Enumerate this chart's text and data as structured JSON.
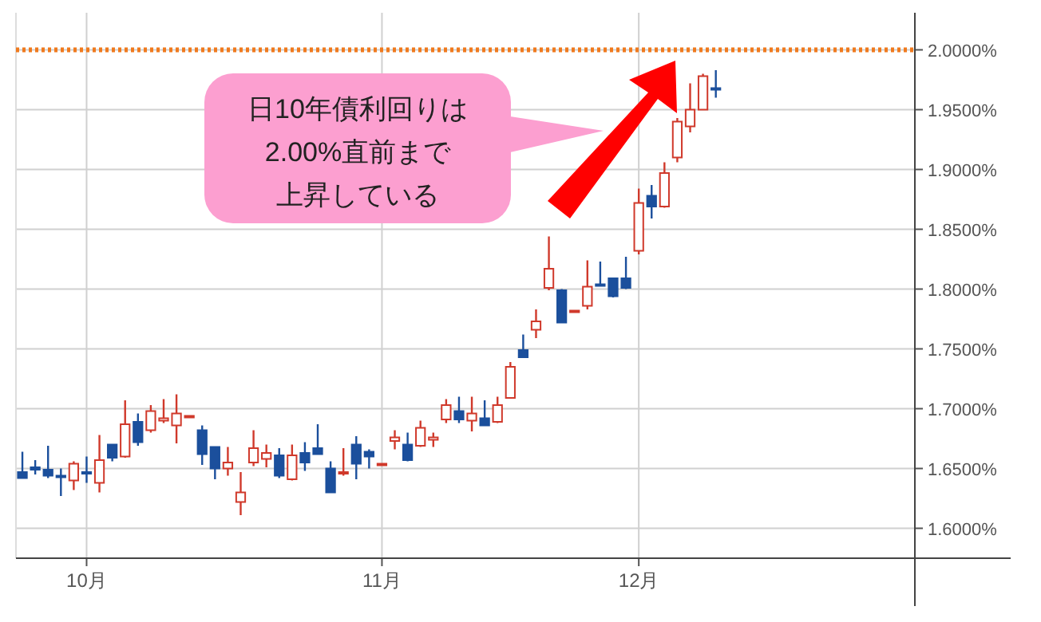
{
  "chart_data": {
    "type": "candlestick",
    "categories": [
      null,
      null,
      null,
      null,
      null,
      "10月",
      null,
      null,
      null,
      null,
      null,
      null,
      null,
      null,
      null,
      null,
      null,
      null,
      null,
      null,
      null,
      null,
      null,
      null,
      null,
      null,
      null,
      null,
      "11月",
      null,
      null,
      null,
      null,
      null,
      null,
      null,
      null,
      null,
      null,
      null,
      null,
      null,
      null,
      null,
      null,
      null,
      null,
      null,
      "12月",
      null,
      null,
      null,
      null,
      null,
      null,
      null,
      null,
      null,
      null,
      null,
      null,
      null,
      null,
      null,
      null,
      null,
      null,
      null,
      null,
      null
    ],
    "ohlc": [
      [
        1.647,
        1.664,
        1.642,
        1.642
      ],
      [
        1.651,
        1.657,
        1.645,
        1.649
      ],
      [
        1.649,
        1.669,
        1.642,
        1.644
      ],
      [
        1.644,
        1.65,
        1.627,
        1.643
      ],
      [
        1.64,
        1.656,
        1.632,
        1.654
      ],
      [
        1.647,
        1.66,
        1.638,
        1.646
      ],
      [
        1.638,
        1.678,
        1.63,
        1.657
      ],
      [
        1.67,
        1.67,
        1.656,
        1.659
      ],
      [
        1.66,
        1.707,
        1.659,
        1.687
      ],
      [
        1.689,
        1.696,
        1.669,
        1.672
      ],
      [
        1.682,
        1.703,
        1.68,
        1.698
      ],
      [
        1.69,
        1.708,
        1.688,
        1.692
      ],
      [
        1.686,
        1.712,
        1.671,
        1.696
      ],
      [
        1.694,
        1.694,
        1.694,
        1.694
      ],
      [
        1.682,
        1.686,
        1.653,
        1.662
      ],
      [
        1.668,
        1.668,
        1.641,
        1.65
      ],
      [
        1.65,
        1.668,
        1.644,
        1.655
      ],
      [
        1.622,
        1.647,
        1.611,
        1.63
      ],
      [
        1.655,
        1.682,
        1.652,
        1.667
      ],
      [
        1.658,
        1.67,
        1.651,
        1.663
      ],
      [
        1.661,
        1.667,
        1.642,
        1.644
      ],
      [
        1.641,
        1.67,
        1.64,
        1.661
      ],
      [
        1.663,
        1.672,
        1.648,
        1.655
      ],
      [
        1.667,
        1.687,
        1.662,
        1.662
      ],
      [
        1.65,
        1.656,
        1.63,
        1.63
      ],
      [
        1.646,
        1.667,
        1.644,
        1.647
      ],
      [
        1.67,
        1.677,
        1.641,
        1.654
      ],
      [
        1.664,
        1.666,
        1.65,
        1.66
      ],
      [
        1.654,
        1.654,
        1.654,
        1.654
      ],
      [
        1.673,
        1.682,
        1.666,
        1.676
      ],
      [
        1.67,
        1.68,
        1.656,
        1.657
      ],
      [
        1.669,
        1.69,
        1.668,
        1.684
      ],
      [
        1.674,
        1.68,
        1.668,
        1.676
      ],
      [
        1.691,
        1.708,
        1.688,
        1.703
      ],
      [
        1.698,
        1.71,
        1.688,
        1.691
      ],
      [
        1.69,
        1.71,
        1.681,
        1.696
      ],
      [
        1.692,
        1.707,
        1.686,
        1.686
      ],
      [
        1.689,
        1.71,
        1.688,
        1.703
      ],
      [
        1.709,
        1.739,
        1.709,
        1.735
      ],
      [
        1.749,
        1.762,
        1.743,
        1.743
      ],
      [
        1.766,
        1.783,
        1.759,
        1.773
      ],
      [
        1.801,
        1.844,
        1.799,
        1.817
      ],
      [
        1.799,
        1.8,
        1.772,
        1.772
      ],
      [
        1.782,
        1.782,
        1.782,
        1.782
      ],
      [
        1.786,
        1.824,
        1.783,
        1.802
      ],
      [
        1.804,
        1.823,
        1.803,
        1.803
      ],
      [
        1.809,
        1.809,
        1.793,
        1.794
      ],
      [
        1.809,
        1.827,
        1.8,
        1.801
      ],
      [
        1.832,
        1.884,
        1.829,
        1.872
      ],
      [
        1.878,
        1.887,
        1.859,
        1.869
      ],
      [
        1.869,
        1.906,
        1.868,
        1.897
      ],
      [
        1.91,
        1.943,
        1.906,
        1.94
      ],
      [
        1.936,
        1.972,
        1.931,
        1.95
      ],
      [
        1.95,
        1.98,
        1.95,
        1.978
      ],
      [
        1.968,
        1.983,
        1.96,
        1.967
      ],
      null,
      null,
      null,
      null,
      null,
      null,
      null,
      null,
      null,
      null,
      null,
      null,
      null,
      null,
      null
    ],
    "ylim": [
      1.575,
      2.031
    ],
    "yticks": [
      {
        "value": 1.6,
        "label": "1.6000%"
      },
      {
        "value": 1.65,
        "label": "1.6500%"
      },
      {
        "value": 1.7,
        "label": "1.7000%"
      },
      {
        "value": 1.75,
        "label": "1.7500%"
      },
      {
        "value": 1.8,
        "label": "1.8000%"
      },
      {
        "value": 1.85,
        "label": "1.8500%"
      },
      {
        "value": 1.9,
        "label": "1.9000%"
      },
      {
        "value": 1.95,
        "label": "1.9500%"
      },
      {
        "value": 2.0,
        "label": "2.0000%"
      }
    ],
    "ref_lines": [
      {
        "axis": "y",
        "value": 2.0,
        "color": "#f07a1e",
        "line_style": "dotted"
      }
    ],
    "annotations": [
      "日10年債利回りは",
      "2.00%直前まで",
      "上昇している"
    ],
    "grid": true
  }
}
